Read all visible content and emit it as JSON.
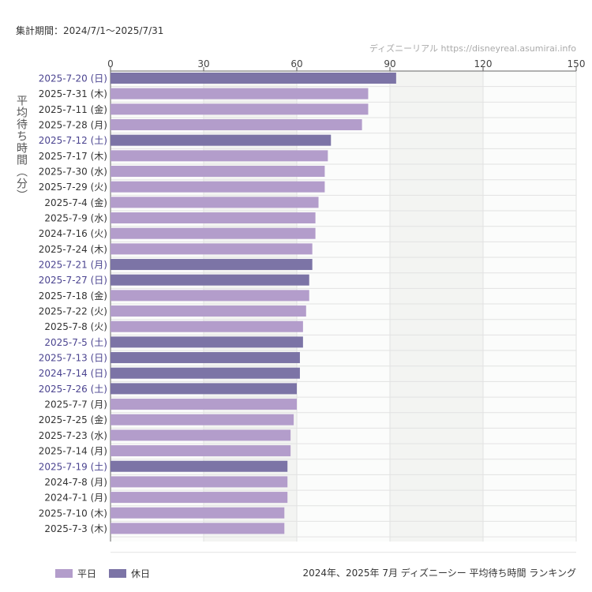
{
  "header": {
    "period": "集計期間：2024/7/1～2025/7/31",
    "credit": "ディズニーリアル https://disneyreal.asumirai.info"
  },
  "caption": "2024年、2025年 7月 ディズニーシー 平均待ち時間 ランキング",
  "colors": {
    "weekday": "#b39dcb",
    "holiday": "#7c74a6",
    "holiday_label": "#4b4490",
    "weekday_label": "#333333"
  },
  "chart_data": {
    "type": "bar",
    "orientation": "horizontal",
    "ylabel": "平均待ち時間（分）",
    "xlim": [
      0,
      150
    ],
    "xticks": [
      0,
      30,
      60,
      90,
      120,
      150
    ],
    "legend": {
      "position": "bottom-left",
      "entries": [
        {
          "name": "平日",
          "key": "weekday"
        },
        {
          "name": "休日",
          "key": "holiday"
        }
      ]
    },
    "categories": [
      "2025-7-20 (日)",
      "2025-7-31 (木)",
      "2025-7-11 (金)",
      "2025-7-28 (月)",
      "2025-7-12 (土)",
      "2025-7-17 (木)",
      "2025-7-30 (水)",
      "2025-7-29 (火)",
      "2025-7-4 (金)",
      "2025-7-9 (水)",
      "2024-7-16 (火)",
      "2025-7-24 (木)",
      "2025-7-21 (月)",
      "2025-7-27 (日)",
      "2025-7-18 (金)",
      "2025-7-22 (火)",
      "2025-7-8 (火)",
      "2025-7-5 (土)",
      "2025-7-13 (日)",
      "2024-7-14 (日)",
      "2025-7-26 (土)",
      "2025-7-7 (月)",
      "2025-7-25 (金)",
      "2025-7-23 (水)",
      "2025-7-14 (月)",
      "2025-7-19 (土)",
      "2024-7-8 (月)",
      "2024-7-1 (月)",
      "2025-7-10 (木)",
      "2025-7-3 (木)"
    ],
    "values": [
      92,
      83,
      83,
      81,
      71,
      70,
      69,
      69,
      67,
      66,
      66,
      65,
      65,
      64,
      64,
      63,
      62,
      62,
      61,
      61,
      60,
      60,
      59,
      58,
      58,
      57,
      57,
      57,
      56,
      56
    ],
    "holiday": [
      true,
      false,
      false,
      false,
      true,
      false,
      false,
      false,
      false,
      false,
      false,
      false,
      true,
      true,
      false,
      false,
      false,
      true,
      true,
      true,
      true,
      false,
      false,
      false,
      false,
      true,
      false,
      false,
      false,
      false
    ]
  }
}
